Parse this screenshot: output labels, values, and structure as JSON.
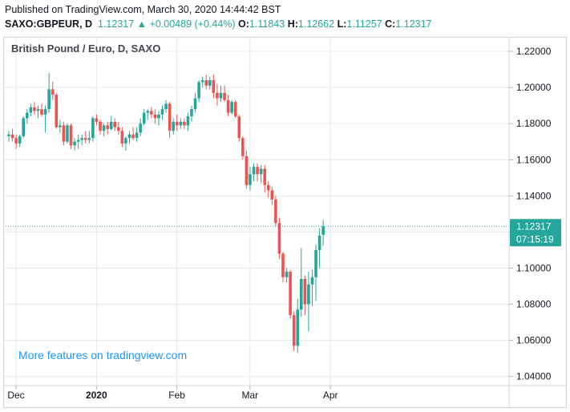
{
  "header": {
    "published": "Published on TradingView.com, March 30, 2020 14:44:42 BST",
    "symbol": "SAXO:GBPEUR, D",
    "last": "1.12317",
    "change_arrow": "▲",
    "change": "+0.00489 (+0.44%)",
    "open_label": "O:",
    "open": "1.11843",
    "high_label": "H:",
    "high": "1.12662",
    "low_label": "L:",
    "low": "1.11257",
    "close_label": "C:",
    "close": "1.12317"
  },
  "colors": {
    "up": "#26a69a",
    "down": "#ef5350",
    "grid": "#e6e9ec",
    "axis_text": "#131722",
    "watermark": "#2196f3",
    "price_line": "#26a69a"
  },
  "watermark": "More features on tradingview.com",
  "price_tag": {
    "price": "1.12317",
    "countdown": "07:15:19"
  },
  "chart_data": {
    "type": "candlestick",
    "title": "British Pound / Euro, D, SAXO",
    "ylim": [
      1.035,
      1.228
    ],
    "y_ticks": [
      "1.22000",
      "1.20000",
      "1.18000",
      "1.16000",
      "1.14000",
      "1.12000",
      "1.10000",
      "1.08000",
      "1.06000",
      "1.04000"
    ],
    "x_ticks": [
      {
        "label": "Dec",
        "index": 0
      },
      {
        "label": "2020",
        "index": 22
      },
      {
        "label": "Feb",
        "index": 44
      },
      {
        "label": "Mar",
        "index": 64
      },
      {
        "label": "Apr",
        "index": 86
      }
    ],
    "last_price": 1.12317,
    "candles": [
      {
        "o": 1.173,
        "h": 1.176,
        "l": 1.17,
        "c": 1.174
      },
      {
        "o": 1.174,
        "h": 1.177,
        "l": 1.17,
        "c": 1.172
      },
      {
        "o": 1.172,
        "h": 1.174,
        "l": 1.166,
        "c": 1.169
      },
      {
        "o": 1.169,
        "h": 1.174,
        "l": 1.167,
        "c": 1.173
      },
      {
        "o": 1.173,
        "h": 1.184,
        "l": 1.172,
        "c": 1.183
      },
      {
        "o": 1.183,
        "h": 1.188,
        "l": 1.18,
        "c": 1.186
      },
      {
        "o": 1.186,
        "h": 1.191,
        "l": 1.184,
        "c": 1.189
      },
      {
        "o": 1.189,
        "h": 1.192,
        "l": 1.185,
        "c": 1.187
      },
      {
        "o": 1.187,
        "h": 1.19,
        "l": 1.183,
        "c": 1.188
      },
      {
        "o": 1.188,
        "h": 1.191,
        "l": 1.184,
        "c": 1.185
      },
      {
        "o": 1.185,
        "h": 1.19,
        "l": 1.175,
        "c": 1.188
      },
      {
        "o": 1.188,
        "h": 1.208,
        "l": 1.186,
        "c": 1.199
      },
      {
        "o": 1.199,
        "h": 1.203,
        "l": 1.193,
        "c": 1.196
      },
      {
        "o": 1.196,
        "h": 1.197,
        "l": 1.177,
        "c": 1.178
      },
      {
        "o": 1.178,
        "h": 1.182,
        "l": 1.175,
        "c": 1.179
      },
      {
        "o": 1.179,
        "h": 1.181,
        "l": 1.168,
        "c": 1.17
      },
      {
        "o": 1.17,
        "h": 1.18,
        "l": 1.169,
        "c": 1.179
      },
      {
        "o": 1.179,
        "h": 1.18,
        "l": 1.166,
        "c": 1.168
      },
      {
        "o": 1.168,
        "h": 1.172,
        "l": 1.165,
        "c": 1.17
      },
      {
        "o": 1.17,
        "h": 1.174,
        "l": 1.166,
        "c": 1.171
      },
      {
        "o": 1.171,
        "h": 1.174,
        "l": 1.168,
        "c": 1.172
      },
      {
        "o": 1.172,
        "h": 1.176,
        "l": 1.169,
        "c": 1.171
      },
      {
        "o": 1.171,
        "h": 1.176,
        "l": 1.169,
        "c": 1.172
      },
      {
        "o": 1.172,
        "h": 1.184,
        "l": 1.17,
        "c": 1.183
      },
      {
        "o": 1.183,
        "h": 1.185,
        "l": 1.179,
        "c": 1.181
      },
      {
        "o": 1.181,
        "h": 1.182,
        "l": 1.174,
        "c": 1.176
      },
      {
        "o": 1.176,
        "h": 1.18,
        "l": 1.173,
        "c": 1.179
      },
      {
        "o": 1.179,
        "h": 1.181,
        "l": 1.174,
        "c": 1.177
      },
      {
        "o": 1.177,
        "h": 1.184,
        "l": 1.176,
        "c": 1.181
      },
      {
        "o": 1.181,
        "h": 1.183,
        "l": 1.176,
        "c": 1.178
      },
      {
        "o": 1.178,
        "h": 1.181,
        "l": 1.174,
        "c": 1.176
      },
      {
        "o": 1.176,
        "h": 1.178,
        "l": 1.167,
        "c": 1.169
      },
      {
        "o": 1.169,
        "h": 1.173,
        "l": 1.165,
        "c": 1.172
      },
      {
        "o": 1.172,
        "h": 1.176,
        "l": 1.169,
        "c": 1.174
      },
      {
        "o": 1.174,
        "h": 1.178,
        "l": 1.171,
        "c": 1.172
      },
      {
        "o": 1.172,
        "h": 1.178,
        "l": 1.17,
        "c": 1.175
      },
      {
        "o": 1.175,
        "h": 1.183,
        "l": 1.173,
        "c": 1.18
      },
      {
        "o": 1.18,
        "h": 1.188,
        "l": 1.179,
        "c": 1.186
      },
      {
        "o": 1.186,
        "h": 1.188,
        "l": 1.182,
        "c": 1.187
      },
      {
        "o": 1.187,
        "h": 1.189,
        "l": 1.183,
        "c": 1.185
      },
      {
        "o": 1.185,
        "h": 1.188,
        "l": 1.18,
        "c": 1.183
      },
      {
        "o": 1.183,
        "h": 1.187,
        "l": 1.179,
        "c": 1.185
      },
      {
        "o": 1.185,
        "h": 1.19,
        "l": 1.182,
        "c": 1.188
      },
      {
        "o": 1.188,
        "h": 1.193,
        "l": 1.186,
        "c": 1.191
      },
      {
        "o": 1.191,
        "h": 1.192,
        "l": 1.172,
        "c": 1.176
      },
      {
        "o": 1.176,
        "h": 1.183,
        "l": 1.174,
        "c": 1.181
      },
      {
        "o": 1.181,
        "h": 1.185,
        "l": 1.176,
        "c": 1.179
      },
      {
        "o": 1.179,
        "h": 1.183,
        "l": 1.177,
        "c": 1.181
      },
      {
        "o": 1.181,
        "h": 1.183,
        "l": 1.177,
        "c": 1.179
      },
      {
        "o": 1.179,
        "h": 1.186,
        "l": 1.176,
        "c": 1.184
      },
      {
        "o": 1.184,
        "h": 1.19,
        "l": 1.181,
        "c": 1.188
      },
      {
        "o": 1.188,
        "h": 1.197,
        "l": 1.186,
        "c": 1.194
      },
      {
        "o": 1.194,
        "h": 1.204,
        "l": 1.192,
        "c": 1.203
      },
      {
        "o": 1.203,
        "h": 1.206,
        "l": 1.2,
        "c": 1.204
      },
      {
        "o": 1.204,
        "h": 1.207,
        "l": 1.199,
        "c": 1.201
      },
      {
        "o": 1.201,
        "h": 1.206,
        "l": 1.199,
        "c": 1.204
      },
      {
        "o": 1.204,
        "h": 1.207,
        "l": 1.194,
        "c": 1.197
      },
      {
        "o": 1.197,
        "h": 1.202,
        "l": 1.19,
        "c": 1.194
      },
      {
        "o": 1.194,
        "h": 1.201,
        "l": 1.192,
        "c": 1.197
      },
      {
        "o": 1.197,
        "h": 1.201,
        "l": 1.192,
        "c": 1.193
      },
      {
        "o": 1.193,
        "h": 1.196,
        "l": 1.184,
        "c": 1.186
      },
      {
        "o": 1.186,
        "h": 1.193,
        "l": 1.185,
        "c": 1.192
      },
      {
        "o": 1.192,
        "h": 1.193,
        "l": 1.183,
        "c": 1.184
      },
      {
        "o": 1.184,
        "h": 1.185,
        "l": 1.17,
        "c": 1.172
      },
      {
        "o": 1.172,
        "h": 1.173,
        "l": 1.16,
        "c": 1.162
      },
      {
        "o": 1.162,
        "h": 1.165,
        "l": 1.144,
        "c": 1.146
      },
      {
        "o": 1.146,
        "h": 1.156,
        "l": 1.143,
        "c": 1.152
      },
      {
        "o": 1.152,
        "h": 1.158,
        "l": 1.148,
        "c": 1.156
      },
      {
        "o": 1.156,
        "h": 1.158,
        "l": 1.148,
        "c": 1.152
      },
      {
        "o": 1.152,
        "h": 1.157,
        "l": 1.147,
        "c": 1.155
      },
      {
        "o": 1.155,
        "h": 1.157,
        "l": 1.142,
        "c": 1.146
      },
      {
        "o": 1.146,
        "h": 1.148,
        "l": 1.139,
        "c": 1.143
      },
      {
        "o": 1.143,
        "h": 1.145,
        "l": 1.135,
        "c": 1.138
      },
      {
        "o": 1.138,
        "h": 1.14,
        "l": 1.123,
        "c": 1.125
      },
      {
        "o": 1.125,
        "h": 1.128,
        "l": 1.105,
        "c": 1.108
      },
      {
        "o": 1.108,
        "h": 1.109,
        "l": 1.092,
        "c": 1.095
      },
      {
        "o": 1.095,
        "h": 1.1,
        "l": 1.092,
        "c": 1.098
      },
      {
        "o": 1.098,
        "h": 1.099,
        "l": 1.072,
        "c": 1.074
      },
      {
        "o": 1.074,
        "h": 1.076,
        "l": 1.054,
        "c": 1.057
      },
      {
        "o": 1.057,
        "h": 1.083,
        "l": 1.053,
        "c": 1.077
      },
      {
        "o": 1.077,
        "h": 1.111,
        "l": 1.073,
        "c": 1.094
      },
      {
        "o": 1.094,
        "h": 1.096,
        "l": 1.074,
        "c": 1.08
      },
      {
        "o": 1.08,
        "h": 1.098,
        "l": 1.065,
        "c": 1.091
      },
      {
        "o": 1.091,
        "h": 1.099,
        "l": 1.079,
        "c": 1.095
      },
      {
        "o": 1.095,
        "h": 1.113,
        "l": 1.082,
        "c": 1.11
      },
      {
        "o": 1.11,
        "h": 1.122,
        "l": 1.1,
        "c": 1.118
      },
      {
        "o": 1.1184,
        "h": 1.1266,
        "l": 1.1126,
        "c": 1.1232
      }
    ]
  }
}
